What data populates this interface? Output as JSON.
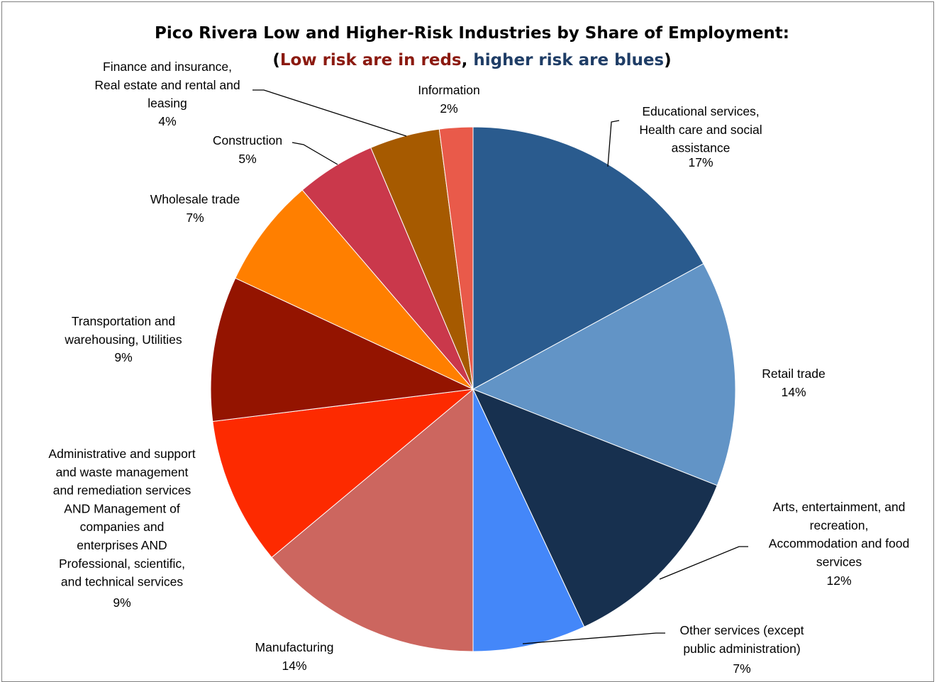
{
  "chart_data": {
    "type": "pie",
    "title": {
      "line1": "Pico Rivera Low and Higher-Risk Industries by Share of Employment:",
      "line2": {
        "open": "(",
        "low": "Low risk are in reds",
        "sep": ", ",
        "high": "higher risk are blues",
        "close": ")"
      }
    },
    "colors": {
      "title": "#000000",
      "low_risk_text": "#8b1a10",
      "high_risk_text": "#1f3d66"
    },
    "slices": [
      {
        "label": "Educational services, Health care and social assistance",
        "value_label": "17%",
        "value": 17.4,
        "color": "#2a5b8e"
      },
      {
        "label": "Retail trade",
        "value_label": "14%",
        "value": 14.2,
        "color": "#6294c6"
      },
      {
        "label": "Arts, entertainment, and recreation, Accommodation and food services",
        "value_label": "12%",
        "value": 12.3,
        "color": "#17304f"
      },
      {
        "label": "Other services (except public administration)",
        "value_label": "7%",
        "value": 7.1,
        "color": "#4487f9"
      },
      {
        "label": "Manufacturing",
        "value_label": "14%",
        "value": 14.2,
        "color": "#cc665f"
      },
      {
        "label": "Administrative and support and waste management and remediation services AND Management of companies and enterprises AND Professional, scientific, and technical services",
        "value_label": "9%",
        "value": 9.3,
        "color": "#fd2a00"
      },
      {
        "label": "Transportation and warehousing, Utilities",
        "value_label": "9%",
        "value": 9.1,
        "color": "#941400"
      },
      {
        "label": "Wholesale trade",
        "value_label": "7%",
        "value": 6.9,
        "color": "#ff7f00"
      },
      {
        "label": "Construction",
        "value_label": "5%",
        "value": 5.0,
        "color": "#ca384b"
      },
      {
        "label": "Finance and insurance, Real estate and rental and leasing",
        "value_label": "4%",
        "value": 4.4,
        "color": "#a65a00"
      },
      {
        "label": "Information",
        "value_label": "2%",
        "value": 2.1,
        "color": "#e95a4a"
      }
    ]
  }
}
